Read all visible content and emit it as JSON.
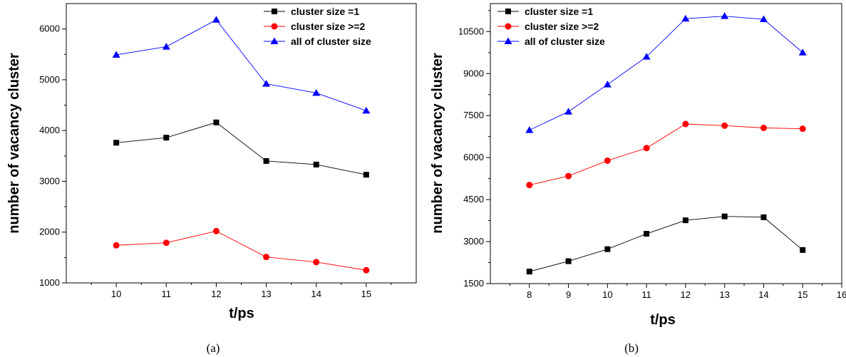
{
  "chart_data": [
    {
      "type": "line",
      "caption": "(a)",
      "xlabel": "t/ps",
      "ylabel": "number of vacancy cluster",
      "x": [
        10,
        11,
        12,
        13,
        14,
        15
      ],
      "xlim": [
        9,
        16
      ],
      "xticks": [
        10,
        11,
        12,
        13,
        14,
        15
      ],
      "ylim": [
        1000,
        6500
      ],
      "yticks": [
        1000,
        2000,
        3000,
        4000,
        5000,
        6000
      ],
      "grid": false,
      "legend_position": "top-right",
      "series": [
        {
          "name": "cluster size =1",
          "color": "#000000",
          "marker": "square",
          "values": [
            3760,
            3860,
            4160,
            3400,
            3330,
            3130
          ]
        },
        {
          "name": "cluster size >=2",
          "color": "#ff0000",
          "marker": "circle",
          "values": [
            1740,
            1790,
            2020,
            1510,
            1410,
            1250
          ]
        },
        {
          "name": "all of cluster size",
          "color": "#0000ff",
          "marker": "triangle",
          "values": [
            5490,
            5650,
            6180,
            4920,
            4740,
            4390
          ]
        }
      ]
    },
    {
      "type": "line",
      "caption": "(b)",
      "xlabel": "t/ps",
      "ylabel": "number of vacancy cluster",
      "x": [
        8,
        9,
        10,
        11,
        12,
        13,
        14,
        15
      ],
      "xlim": [
        7,
        16
      ],
      "xticks": [
        8,
        9,
        10,
        11,
        12,
        13,
        14,
        15,
        16
      ],
      "ylim": [
        1500,
        11500
      ],
      "yticks": [
        1500,
        3000,
        4500,
        6000,
        7500,
        9000,
        10500
      ],
      "grid": false,
      "legend_position": "top-left",
      "series": [
        {
          "name": "cluster size =1",
          "color": "#000000",
          "marker": "square",
          "values": [
            1930,
            2300,
            2730,
            3280,
            3760,
            3900,
            3870,
            2700
          ]
        },
        {
          "name": "cluster size >=2",
          "color": "#ff0000",
          "marker": "circle",
          "values": [
            5020,
            5340,
            5890,
            6340,
            7200,
            7140,
            7060,
            7030
          ]
        },
        {
          "name": "all of cluster size",
          "color": "#0000ff",
          "marker": "triangle",
          "values": [
            6980,
            7640,
            8610,
            9600,
            10960,
            11050,
            10940,
            9750
          ]
        }
      ]
    }
  ]
}
